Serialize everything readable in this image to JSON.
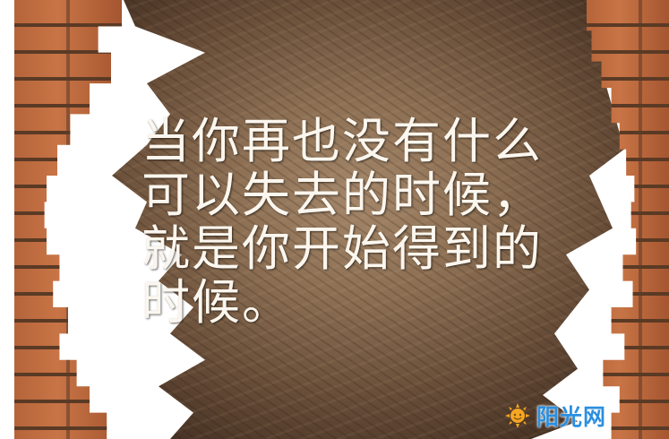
{
  "image": {
    "quote_lines": [
      "当你再也没有什么",
      "可以失去的时候，",
      "就是你开始得到的",
      "时候。"
    ],
    "watermark": {
      "text": "阳光网",
      "icon": "sun-icon"
    },
    "colors": {
      "text": "#fbf6ee",
      "brick": "#c87446",
      "panel": "#8e7155",
      "watermark": "#2b8fe0"
    }
  }
}
